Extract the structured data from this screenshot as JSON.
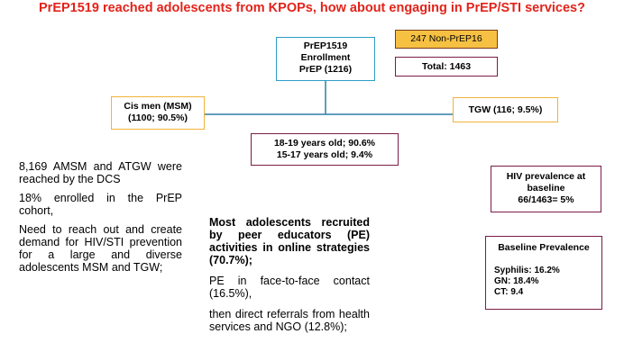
{
  "title": "PrEP1519 reached adolescents from KPOPs, how about engaging in PrEP/STI services?",
  "enrollment": [
    "PrEP1519",
    "Enrollment",
    "PrEP (1216)"
  ],
  "non_prep": "247 Non-PrEP16",
  "total": "Total: 1463",
  "cis_men": [
    "Cis men (MSM)",
    "(1100; 90.5%)"
  ],
  "tgw": "TGW (116; 9.5%)",
  "age_groups": [
    "18-19 years old; 90.6%",
    "15-17 years old; 9.4%"
  ],
  "hiv_prevalence": [
    "HIV prevalence at",
    "baseline",
    "66/1463= 5%"
  ],
  "baseline_prevalence": {
    "title": "Baseline Prevalence",
    "lines": [
      "Syphilis: 16.2%",
      "GN: 18.4%",
      "CT: 9.4"
    ]
  },
  "left_text": [
    "8,169 AMSM and ATGW were reached by the DCS",
    "18% enrolled in the PrEP cohort,",
    "Need to reach out and create demand for HIV/STI prevention for a large and diverse adolescents MSM and TGW;"
  ],
  "middle_text": [
    "Most adolescents recruited by peer educators (PE) activities in online strategies (70.7%);",
    "PE in face-to-face contact (16.5%),",
    "then direct referrals from health services and NGO (12.8%);"
  ],
  "colors": {
    "title": "#e2231a",
    "enrollment_border": "#2e9cc7",
    "non_prep_fill": "#f6c143",
    "group_border": "#f0b23a",
    "info_border": "#7b1c47",
    "connector": "#2e7fa8"
  }
}
